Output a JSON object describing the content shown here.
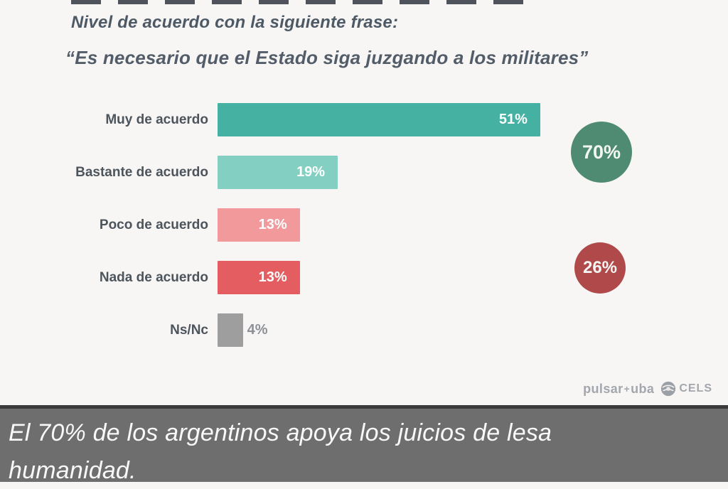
{
  "header": {
    "title": "Nivel de acuerdo con la siguiente frase:",
    "subtitle": "“Es necesario que el Estado siga juzgando a los militares”"
  },
  "chart_data": {
    "type": "bar",
    "orientation": "horizontal",
    "title": "Nivel de acuerdo con la siguiente frase: “Es necesario que el Estado siga juzgando a los militares”",
    "unit": "%",
    "categories": [
      "Muy de acuerdo",
      "Bastante de acuerdo",
      "Poco de acuerdo",
      "Nada de acuerdo",
      "Ns/Nc"
    ],
    "values": [
      51,
      19,
      13,
      13,
      4
    ],
    "value_labels": [
      "51%",
      "19%",
      "13%",
      "13%",
      "4%"
    ],
    "bar_colors": [
      "#45b1a3",
      "#83d0c2",
      "#f1999b",
      "#e45d60",
      "#9e9e9e"
    ],
    "value_label_inside": [
      true,
      true,
      true,
      true,
      false
    ],
    "xlim": [
      0,
      55
    ],
    "grid": false,
    "legend": false,
    "summary_circles": [
      {
        "label": "70%",
        "value": 70,
        "color": "#4e8b72"
      },
      {
        "label": "26%",
        "value": 26,
        "color": "#b04a4a"
      }
    ]
  },
  "footer": {
    "pulsar_logo": "pulsar",
    "pulsar_separator": "+",
    "pulsar_suffix": "uba",
    "cels_label": "CELS"
  },
  "caption": {
    "text": "El 70% de los argentinos apoya los juicios de lesa humanidad."
  }
}
